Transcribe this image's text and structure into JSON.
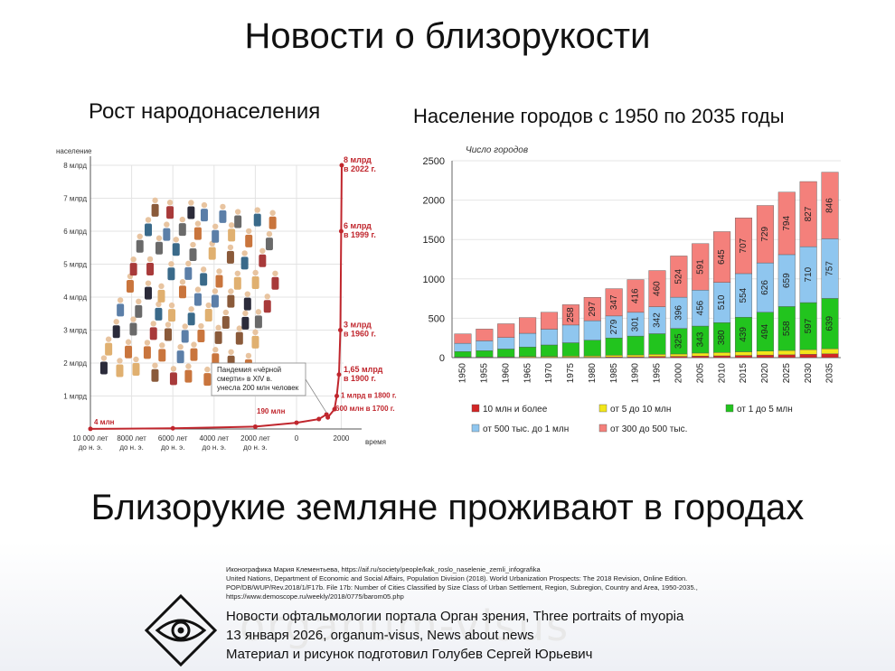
{
  "slide": {
    "title": "Новости о близорукости",
    "left_title": "Рост народонаселения",
    "right_title": "Население городов с 1950 по 2035 годы",
    "bottom_title": "Близорукие земляне проживают в городах"
  },
  "footer": {
    "sources": [
      "Иконографика Мария Клементьева, https://aif.ru/society/people/kak_roslo_naselenie_zemli_infografika",
      "United Nations, Department of Economic and Social Affairs, Population Division (2018). World Urbanization Prospects: The 2018 Revision, Online Edition.",
      "POP/DB/WUP/Rev.2018/1/F17b. File 17b: Number of Cities Classified by Size Class of Urban Settlement, Region, Subregion, Country and Area, 1950-2035.,",
      "https://www.demoscope.ru/weekly/2018/0775/barom05.php"
    ],
    "watermark": "organum-visus",
    "line1": "Новости офтальмологии портала Орган зрения, Three portraits of myopia",
    "line2": "13 января 2026, organum-visus, News about news",
    "line3": "Материал и рисунок подготовил Голубев Сергей Юрьевич"
  },
  "chart_data": [
    {
      "type": "line",
      "ylabel": "население",
      "xlabel": "время",
      "y_ticks": [
        "1 млрд",
        "2 млрд",
        "3 млрд",
        "4 млрд",
        "5 млрд",
        "6 млрд",
        "7 млрд",
        "8 млрд"
      ],
      "x_ticks": [
        {
          "label": "10 000 лет до н. э.",
          "year": -10000
        },
        {
          "label": "8000 лет до н. э.",
          "year": -8000
        },
        {
          "label": "6000 лет до н. э.",
          "year": -6000
        },
        {
          "label": "4000 лет до н. э.",
          "year": -4000
        },
        {
          "label": "2000 лет до н. э.",
          "year": -2000
        },
        {
          "label": "0",
          "year": 0
        },
        {
          "label": "2000",
          "year": 2000
        }
      ],
      "points": [
        {
          "year": -10000,
          "value": 0.004
        },
        {
          "year": -6000,
          "value": 0.02
        },
        {
          "year": -2000,
          "value": 0.07
        },
        {
          "year": 0,
          "value": 0.19
        },
        {
          "year": 1000,
          "value": 0.3
        },
        {
          "year": 1340,
          "value": 0.44
        },
        {
          "year": 1400,
          "value": 0.35
        },
        {
          "year": 1700,
          "value": 0.6
        },
        {
          "year": 1800,
          "value": 1.0
        },
        {
          "year": 1900,
          "value": 1.65
        },
        {
          "year": 1960,
          "value": 3.0
        },
        {
          "year": 1999,
          "value": 6.0
        },
        {
          "year": 2022,
          "value": 8.0
        }
      ],
      "annotations": [
        {
          "text": "4 млн",
          "year": -10000,
          "value": 0.004
        },
        {
          "text": "190 млн",
          "year": 0,
          "value": 0.19
        },
        {
          "text": "600 млн в 1700 г.",
          "year": 1700,
          "value": 0.6
        },
        {
          "text": "1 млрд в 1800 г.",
          "year": 1800,
          "value": 1.0
        },
        {
          "text": "1,65 млрд в 1900 г.",
          "year": 1900,
          "value": 1.65
        },
        {
          "text": "3 млрд в 1960 г.",
          "year": 1960,
          "value": 3.0
        },
        {
          "text": "6 млрд в 1999 г.",
          "year": 1999,
          "value": 6.0
        },
        {
          "text": "8 млрд в 2022 г.",
          "year": 2022,
          "value": 8.0
        }
      ],
      "callout": "Пандемия «чёрной смерти» в XIV в. унесла 200 млн человек",
      "line_color": "#c0262d"
    },
    {
      "type": "bar",
      "stacked": true,
      "title": "Число городов",
      "categories": [
        "1950",
        "1955",
        "1960",
        "1965",
        "1970",
        "1975",
        "1980",
        "1985",
        "1990",
        "1995",
        "2000",
        "2005",
        "2010",
        "2015",
        "2020",
        "2025",
        "2030",
        "2035"
      ],
      "ylim": [
        0,
        2500
      ],
      "y_ticks": [
        0,
        500,
        1000,
        1500,
        2000,
        2500
      ],
      "series": [
        {
          "name": "10 млн и более",
          "color": "#d22626",
          "values": [
            2,
            2,
            3,
            4,
            4,
            5,
            5,
            8,
            10,
            14,
            16,
            20,
            23,
            28,
            33,
            36,
            42,
            48
          ]
        },
        {
          "name": "от 5 до 10 млн",
          "color": "#f2e61a",
          "values": [
            5,
            6,
            7,
            10,
            12,
            14,
            17,
            22,
            24,
            28,
            30,
            38,
            42,
            46,
            50,
            55,
            60,
            65
          ]
        },
        {
          "name": "от 1 до 5 млн",
          "color": "#22c41e",
          "values": [
            70,
            80,
            100,
            120,
            145,
            170,
            200,
            220,
            240,
            262,
            325,
            343,
            380,
            439,
            494,
            558,
            597,
            639
          ]
        },
        {
          "name": "от 500 тыс. до 1 млн",
          "color": "#8fc6ef",
          "values": [
            105,
            125,
            145,
            175,
            200,
            225,
            247,
            279,
            301,
            342,
            396,
            456,
            510,
            554,
            626,
            659,
            710,
            757
          ]
        },
        {
          "name": "от 300 до 500 тыс.",
          "color": "#f4807b",
          "values": [
            120,
            150,
            175,
            200,
            215,
            258,
            297,
            347,
            416,
            460,
            524,
            591,
            645,
            707,
            729,
            794,
            827,
            846
          ]
        }
      ],
      "labeled_series": [
        "от 1 до 5 млн",
        "от 500 тыс. до 1 млн",
        "от 300 до 500 тыс."
      ],
      "label_from_index": {
        "от 1 до 5 млн": 10,
        "от 500 тыс. до 1 млн": 7,
        "от 300 до 500 тыс.": 5
      }
    }
  ]
}
